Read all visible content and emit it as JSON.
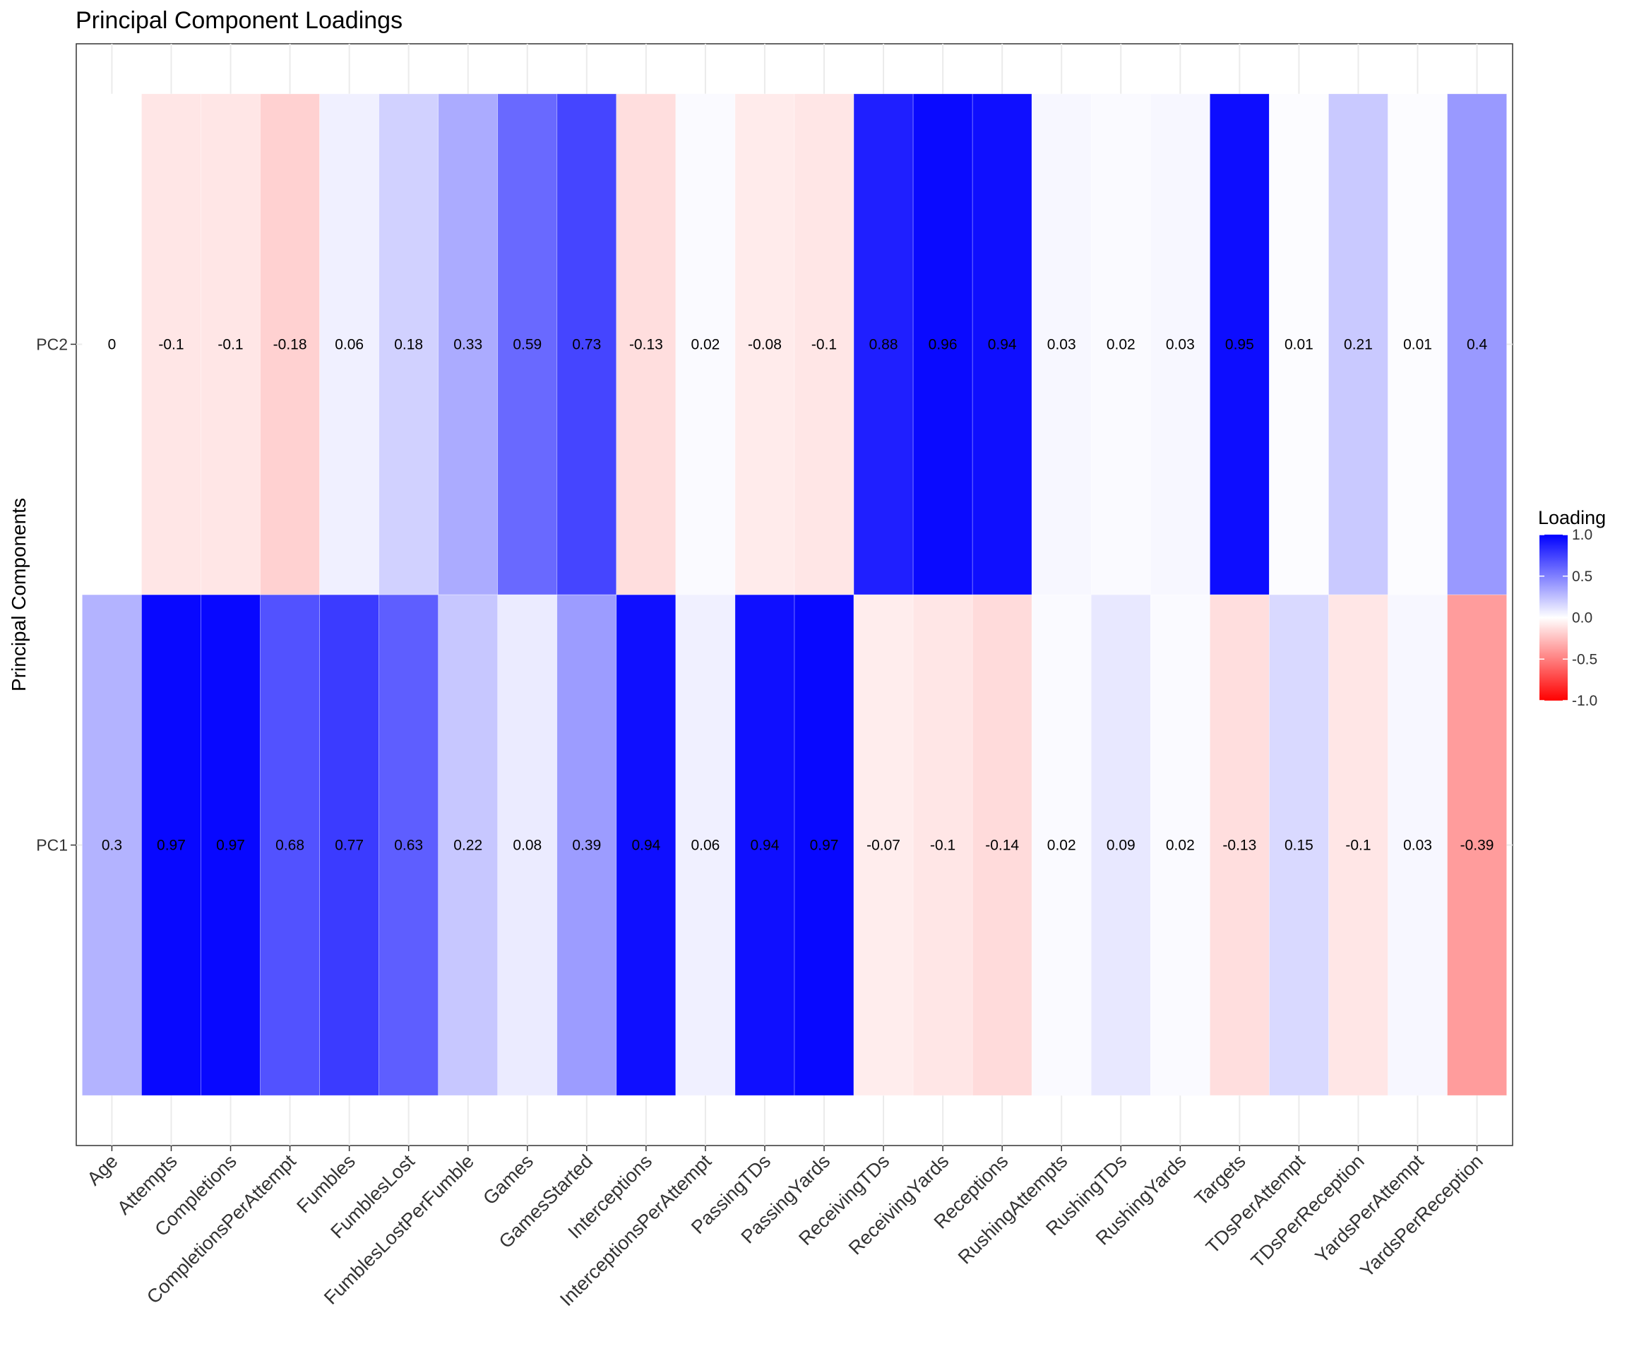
{
  "chart_data": {
    "type": "heatmap",
    "title": "Principal Component Loadings",
    "xlabel": "",
    "ylabel": "Principal Components",
    "x": [
      "Age",
      "Attempts",
      "Completions",
      "CompletionsPerAttempt",
      "Fumbles",
      "FumblesLost",
      "FumblesLostPerFumble",
      "Games",
      "GamesStarted",
      "Interceptions",
      "InterceptionsPerAttempt",
      "PassingTDs",
      "PassingYards",
      "ReceivingTDs",
      "ReceivingYards",
      "Receptions",
      "RushingAttempts",
      "RushingTDs",
      "RushingYards",
      "Targets",
      "TDsPerAttempt",
      "TDsPerReception",
      "YardsPerAttempt",
      "YardsPerReception"
    ],
    "y": [
      "PC1",
      "PC2"
    ],
    "values": {
      "PC1": [
        0.3,
        0.97,
        0.97,
        0.68,
        0.77,
        0.63,
        0.22,
        0.08,
        0.39,
        0.94,
        0.06,
        0.94,
        0.97,
        -0.07,
        -0.1,
        -0.14,
        0.02,
        0.09,
        0.02,
        -0.13,
        0.15,
        -0.1,
        0.03,
        -0.39
      ],
      "PC2": [
        0,
        -0.1,
        -0.1,
        -0.18,
        0.06,
        0.18,
        0.33,
        0.59,
        0.73,
        -0.13,
        0.02,
        -0.08,
        -0.1,
        0.88,
        0.96,
        0.94,
        0.03,
        0.02,
        0.03,
        0.95,
        0.01,
        0.21,
        0.01,
        0.4
      ]
    },
    "legend": {
      "title": "Loading",
      "ticks": [
        "1.0",
        "0.5",
        "0.0",
        "-0.5",
        "-1.0"
      ],
      "low_color": "#ff0000",
      "mid_color": "#ffffff",
      "high_color": "#0000ff",
      "limits": [
        -1,
        1
      ],
      "placement": "right"
    },
    "grid": true
  }
}
